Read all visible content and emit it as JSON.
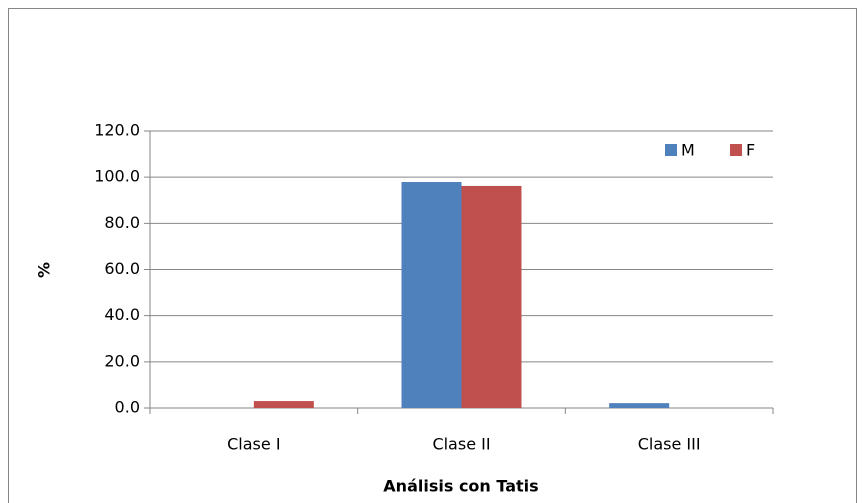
{
  "chart_data": {
    "type": "bar",
    "x_label": "Análisis con Tatis",
    "y_label": "%",
    "categories": [
      "Clase I",
      "Clase II",
      "Clase III"
    ],
    "series": [
      {
        "name": "M",
        "color": "#4f81bd",
        "values": [
          0,
          97.9,
          2.1
        ]
      },
      {
        "name": "F",
        "color": "#c0504d",
        "values": [
          3.0,
          96.2,
          0
        ]
      }
    ],
    "ylim": [
      0,
      120
    ],
    "yticks": [
      {
        "value": 0,
        "label": "0.0"
      },
      {
        "value": 20,
        "label": "20.0"
      },
      {
        "value": 40,
        "label": "40.0"
      },
      {
        "value": 60,
        "label": "60.0"
      },
      {
        "value": 80,
        "label": "80.0"
      },
      {
        "value": 100,
        "label": "100.0"
      },
      {
        "value": 120,
        "label": "120.0"
      }
    ],
    "grid": true,
    "legend": "top-right"
  }
}
